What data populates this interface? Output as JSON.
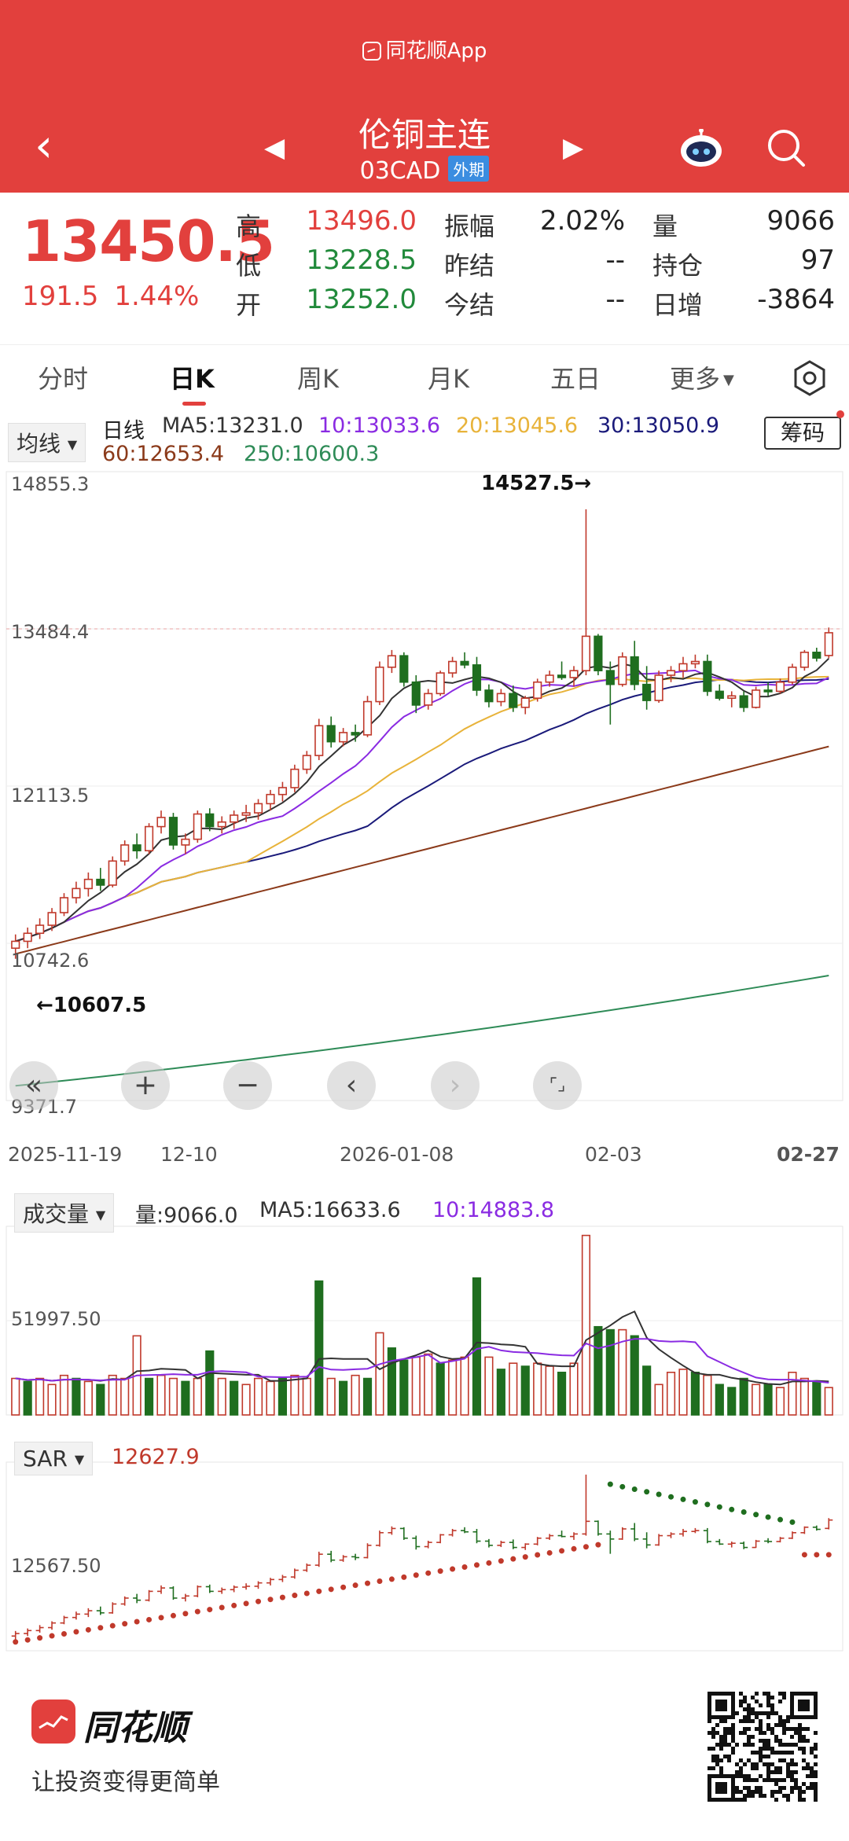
{
  "app": {
    "brand": "同花顺App"
  },
  "header": {
    "title": "伦铜主连",
    "code": "03CAD",
    "badge": "外期"
  },
  "quote": {
    "last": "13450.5",
    "change": "191.5",
    "change_pct": "1.44%",
    "rows": [
      {
        "l1": "高",
        "v1": "13496.0",
        "c1": "red",
        "l2": "振幅",
        "v2": "2.02%",
        "c2": "dark",
        "l3": "量",
        "v3": "9066",
        "c3": "dark"
      },
      {
        "l1": "低",
        "v1": "13228.5",
        "c1": "green",
        "l2": "昨结",
        "v2": "--",
        "c2": "dark",
        "l3": "持仓",
        "v3": "97",
        "c3": "dark"
      },
      {
        "l1": "开",
        "v1": "13252.0",
        "c1": "green",
        "l2": "今结",
        "v2": "--",
        "c2": "dark",
        "l3": "日增",
        "v3": "-3864",
        "c3": "dark"
      }
    ]
  },
  "tabs": [
    "分时",
    "日K",
    "周K",
    "月K",
    "五日",
    "更多"
  ],
  "indicator": {
    "ma_selector": "均线",
    "line_type": "日线",
    "ma5": "MA5:13231.0",
    "ma10": "10:13033.6",
    "ma20": "20:13045.6",
    "ma30": "30:13050.9",
    "ma60": "60:12653.4",
    "ma250": "250:10600.3",
    "chip_button": "筹码"
  },
  "volume": {
    "selector": "成交量",
    "vol": "量:9066.0",
    "ma5": "MA5:16633.6",
    "ma10": "10:14883.8",
    "axis_label": "51997.50"
  },
  "sar": {
    "selector": "SAR",
    "value": "12627.9",
    "axis_label": "12567.50"
  },
  "colors": {
    "up": "#c0392b",
    "down": "#1f6e1f",
    "ma5": "#333333",
    "ma10": "#8a2be2",
    "ma20": "#e8b33a",
    "ma30": "#1a1a7a",
    "ma60": "#8b3a1a",
    "ma250": "#2e8b57"
  },
  "chart_data": {
    "type": "candlestick",
    "y_ticks": [
      "14855.3",
      "13484.4",
      "12113.5",
      "10742.6",
      "9371.7"
    ],
    "ylim": [
      9371.7,
      14855.3
    ],
    "x_ticks": [
      "2025-11-19",
      "12-10",
      "2026-01-08",
      "02-03",
      "02-27"
    ],
    "annotations": {
      "high": "14527.5→",
      "low": "←10607.5"
    },
    "candles": [
      [
        10700,
        10820,
        10607.5,
        10760
      ],
      [
        10760,
        10880,
        10700,
        10830
      ],
      [
        10830,
        10960,
        10780,
        10900
      ],
      [
        10900,
        11050,
        10850,
        11010
      ],
      [
        11010,
        11180,
        10980,
        11140
      ],
      [
        11140,
        11280,
        11090,
        11220
      ],
      [
        11220,
        11360,
        11150,
        11300
      ],
      [
        11300,
        11400,
        11200,
        11250
      ],
      [
        11250,
        11500,
        11230,
        11460
      ],
      [
        11460,
        11640,
        11420,
        11600
      ],
      [
        11600,
        11700,
        11480,
        11550
      ],
      [
        11550,
        11790,
        11520,
        11760
      ],
      [
        11760,
        11900,
        11700,
        11840
      ],
      [
        11840,
        11880,
        11560,
        11600
      ],
      [
        11600,
        11700,
        11520,
        11650
      ],
      [
        11650,
        11900,
        11620,
        11870
      ],
      [
        11870,
        11920,
        11720,
        11760
      ],
      [
        11760,
        11850,
        11700,
        11800
      ],
      [
        11800,
        11900,
        11740,
        11860
      ],
      [
        11860,
        11950,
        11800,
        11880
      ],
      [
        11880,
        12000,
        11820,
        11960
      ],
      [
        11960,
        12080,
        11900,
        12040
      ],
      [
        12040,
        12150,
        11980,
        12100
      ],
      [
        12100,
        12300,
        12060,
        12260
      ],
      [
        12260,
        12420,
        12220,
        12380
      ],
      [
        12380,
        12700,
        12340,
        12640
      ],
      [
        12640,
        12720,
        12450,
        12500
      ],
      [
        12500,
        12620,
        12460,
        12580
      ],
      [
        12580,
        12650,
        12500,
        12560
      ],
      [
        12560,
        12900,
        12540,
        12850
      ],
      [
        12850,
        13200,
        12820,
        13150
      ],
      [
        13150,
        13300,
        13100,
        13250
      ],
      [
        13250,
        13280,
        12980,
        13020
      ],
      [
        13020,
        13080,
        12750,
        12820
      ],
      [
        12820,
        12960,
        12780,
        12920
      ],
      [
        12920,
        13120,
        12900,
        13100
      ],
      [
        13100,
        13240,
        13060,
        13200
      ],
      [
        13200,
        13280,
        13140,
        13170
      ],
      [
        13170,
        13240,
        12900,
        12950
      ],
      [
        12950,
        13000,
        12800,
        12850
      ],
      [
        12850,
        12960,
        12810,
        12920
      ],
      [
        12920,
        12990,
        12760,
        12800
      ],
      [
        12800,
        12900,
        12740,
        12880
      ],
      [
        12880,
        13050,
        12850,
        13020
      ],
      [
        13020,
        13120,
        12980,
        13080
      ],
      [
        13080,
        13200,
        13040,
        13060
      ],
      [
        13060,
        13160,
        12980,
        13120
      ],
      [
        13120,
        14527.5,
        13080,
        13420
      ],
      [
        13420,
        13440,
        13080,
        13120
      ],
      [
        13120,
        13200,
        12650,
        13000
      ],
      [
        13000,
        13280,
        12980,
        13240
      ],
      [
        13240,
        13380,
        12950,
        13000
      ],
      [
        13000,
        13160,
        12780,
        12860
      ],
      [
        12860,
        13120,
        12840,
        13080
      ],
      [
        13080,
        13160,
        13020,
        13120
      ],
      [
        13120,
        13240,
        13060,
        13180
      ],
      [
        13180,
        13260,
        13140,
        13200
      ],
      [
        13200,
        13260,
        12900,
        12940
      ],
      [
        12940,
        13000,
        12860,
        12880
      ],
      [
        12880,
        12940,
        12800,
        12900
      ],
      [
        12900,
        12940,
        12760,
        12800
      ],
      [
        12800,
        12980,
        12790,
        12950
      ],
      [
        12950,
        13020,
        12900,
        12940
      ],
      [
        12940,
        13050,
        12920,
        13020
      ],
      [
        13020,
        13180,
        13000,
        13150
      ],
      [
        13150,
        13300,
        13120,
        13280
      ],
      [
        13280,
        13320,
        13200,
        13230
      ],
      [
        13252,
        13496,
        13228.5,
        13450.5
      ]
    ],
    "volume_bars": [
      [
        12,
        "up"
      ],
      [
        11,
        "dn"
      ],
      [
        12,
        "up"
      ],
      [
        10,
        "up"
      ],
      [
        13,
        "up"
      ],
      [
        12,
        "dn"
      ],
      [
        11,
        "up"
      ],
      [
        10,
        "dn"
      ],
      [
        13,
        "up"
      ],
      [
        12,
        "up"
      ],
      [
        26,
        "up"
      ],
      [
        12,
        "dn"
      ],
      [
        13,
        "up"
      ],
      [
        12,
        "up"
      ],
      [
        11,
        "dn"
      ],
      [
        12,
        "up"
      ],
      [
        21,
        "dn"
      ],
      [
        12,
        "up"
      ],
      [
        11,
        "dn"
      ],
      [
        10,
        "up"
      ],
      [
        12,
        "up"
      ],
      [
        11,
        "up"
      ],
      [
        12,
        "dn"
      ],
      [
        13,
        "up"
      ],
      [
        12,
        "up"
      ],
      [
        44,
        "dn"
      ],
      [
        12,
        "up"
      ],
      [
        11,
        "dn"
      ],
      [
        13,
        "up"
      ],
      [
        12,
        "dn"
      ],
      [
        27,
        "up"
      ],
      [
        22,
        "dn"
      ],
      [
        18,
        "dn"
      ],
      [
        19,
        "up"
      ],
      [
        20,
        "up"
      ],
      [
        17,
        "dn"
      ],
      [
        18,
        "up"
      ],
      [
        19,
        "up"
      ],
      [
        45,
        "dn"
      ],
      [
        19,
        "up"
      ],
      [
        15,
        "dn"
      ],
      [
        17,
        "up"
      ],
      [
        16,
        "dn"
      ],
      [
        17,
        "up"
      ],
      [
        16,
        "up"
      ],
      [
        14,
        "dn"
      ],
      [
        17,
        "up"
      ],
      [
        59,
        "up"
      ],
      [
        29,
        "dn"
      ],
      [
        28,
        "dn"
      ],
      [
        28,
        "up"
      ],
      [
        26,
        "dn"
      ],
      [
        16,
        "dn"
      ],
      [
        10,
        "up"
      ],
      [
        14,
        "up"
      ],
      [
        15,
        "up"
      ],
      [
        14,
        "dn"
      ],
      [
        13,
        "up"
      ],
      [
        10,
        "dn"
      ],
      [
        9,
        "dn"
      ],
      [
        12,
        "dn"
      ],
      [
        10,
        "up"
      ],
      [
        10,
        "dn"
      ],
      [
        9,
        "up"
      ],
      [
        14,
        "up"
      ],
      [
        12,
        "up"
      ],
      [
        11,
        "dn"
      ],
      [
        9,
        "up"
      ]
    ]
  },
  "controls": [
    "«",
    "+",
    "−",
    "‹",
    "›",
    "⌜⌟"
  ],
  "footer": {
    "brand": "同花顺",
    "slogan": "让投资变得更简单"
  }
}
